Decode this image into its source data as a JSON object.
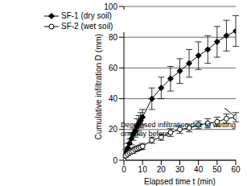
{
  "chart_data": {
    "type": "line",
    "x_label": "Elapsed time t (min)",
    "y_label": "Cumulative infiltration D (mm)",
    "annotation": "Decreased infiltration due to wetting one day before",
    "xlim": [
      0,
      60
    ],
    "xticks": [
      0,
      10,
      20,
      30,
      40,
      50,
      60
    ],
    "ylim": [
      0,
      100
    ],
    "yticks": [
      0,
      20,
      40,
      60,
      80,
      100
    ],
    "grid": true,
    "legend": "top-left",
    "series": [
      {
        "name": "SF-1 (dry soil)",
        "color": "#000000",
        "marker": "diamond",
        "x": [
          0,
          1,
          2,
          3,
          4,
          5,
          6,
          7,
          8,
          9,
          10,
          15,
          20,
          25,
          30,
          35,
          40,
          45,
          50,
          55,
          60
        ],
        "values": [
          0,
          5,
          8,
          11,
          14,
          17,
          19,
          22,
          24,
          26,
          28,
          40,
          47,
          53,
          58,
          63,
          68,
          72,
          77,
          81,
          84
        ],
        "errors": [
          0,
          2,
          3,
          3,
          4,
          4,
          4,
          5,
          5,
          5,
          5,
          7,
          7,
          8,
          8,
          9,
          9,
          9,
          10,
          10,
          10
        ]
      },
      {
        "name": "SF-2 (wet soil)",
        "color": "#000000",
        "marker": "circle_open",
        "x": [
          0,
          1,
          2,
          3,
          4,
          5,
          6,
          7,
          8,
          9,
          10,
          15,
          20,
          25,
          30,
          35,
          40,
          45,
          50,
          55,
          60
        ],
        "values": [
          0,
          3,
          4,
          5,
          5.5,
          6,
          7,
          7.5,
          8,
          8.5,
          9,
          13,
          15,
          18,
          20,
          21,
          23,
          24,
          25,
          27,
          28
        ],
        "errors": [
          0,
          1,
          1,
          1,
          1,
          1.5,
          1.5,
          1.5,
          1.5,
          1.5,
          2,
          2,
          2,
          2.5,
          2.5,
          2.5,
          2.5,
          3,
          3,
          3,
          3
        ]
      }
    ]
  }
}
